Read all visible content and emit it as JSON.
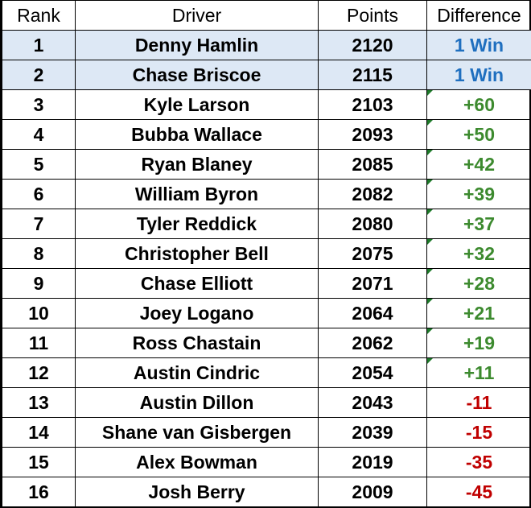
{
  "headers": {
    "rank": "Rank",
    "driver": "Driver",
    "points": "Points",
    "difference": "Difference"
  },
  "colors": {
    "highlight_row": "#dde8f5",
    "win_text": "#1f6fbf",
    "positive_text": "#3c8a2e",
    "negative_text": "#c00000",
    "cell_flag": "#1e7a2a"
  },
  "rows": [
    {
      "rank": "1",
      "driver": "Denny Hamlin",
      "points": "2120",
      "difference": "1 Win",
      "kind": "win",
      "highlight": true,
      "flag": false
    },
    {
      "rank": "2",
      "driver": "Chase Briscoe",
      "points": "2115",
      "difference": "1 Win",
      "kind": "win",
      "highlight": true,
      "flag": false
    },
    {
      "rank": "3",
      "driver": "Kyle Larson",
      "points": "2103",
      "difference": "+60",
      "kind": "pos",
      "highlight": false,
      "flag": true
    },
    {
      "rank": "4",
      "driver": "Bubba Wallace",
      "points": "2093",
      "difference": "+50",
      "kind": "pos",
      "highlight": false,
      "flag": true
    },
    {
      "rank": "5",
      "driver": "Ryan Blaney",
      "points": "2085",
      "difference": "+42",
      "kind": "pos",
      "highlight": false,
      "flag": true
    },
    {
      "rank": "6",
      "driver": "William Byron",
      "points": "2082",
      "difference": "+39",
      "kind": "pos",
      "highlight": false,
      "flag": true
    },
    {
      "rank": "7",
      "driver": "Tyler Reddick",
      "points": "2080",
      "difference": "+37",
      "kind": "pos",
      "highlight": false,
      "flag": true
    },
    {
      "rank": "8",
      "driver": "Christopher Bell",
      "points": "2075",
      "difference": "+32",
      "kind": "pos",
      "highlight": false,
      "flag": true
    },
    {
      "rank": "9",
      "driver": "Chase Elliott",
      "points": "2071",
      "difference": "+28",
      "kind": "pos",
      "highlight": false,
      "flag": true
    },
    {
      "rank": "10",
      "driver": "Joey Logano",
      "points": "2064",
      "difference": "+21",
      "kind": "pos",
      "highlight": false,
      "flag": true
    },
    {
      "rank": "11",
      "driver": "Ross Chastain",
      "points": "2062",
      "difference": "+19",
      "kind": "pos",
      "highlight": false,
      "flag": true
    },
    {
      "rank": "12",
      "driver": "Austin Cindric",
      "points": "2054",
      "difference": "+11",
      "kind": "pos",
      "highlight": false,
      "flag": true
    },
    {
      "rank": "13",
      "driver": "Austin Dillon",
      "points": "2043",
      "difference": "-11",
      "kind": "neg",
      "highlight": false,
      "flag": false
    },
    {
      "rank": "14",
      "driver": "Shane van Gisbergen",
      "points": "2039",
      "difference": "-15",
      "kind": "neg",
      "highlight": false,
      "flag": false
    },
    {
      "rank": "15",
      "driver": "Alex Bowman",
      "points": "2019",
      "difference": "-35",
      "kind": "neg",
      "highlight": false,
      "flag": false
    },
    {
      "rank": "16",
      "driver": "Josh Berry",
      "points": "2009",
      "difference": "-45",
      "kind": "neg",
      "highlight": false,
      "flag": false
    }
  ]
}
